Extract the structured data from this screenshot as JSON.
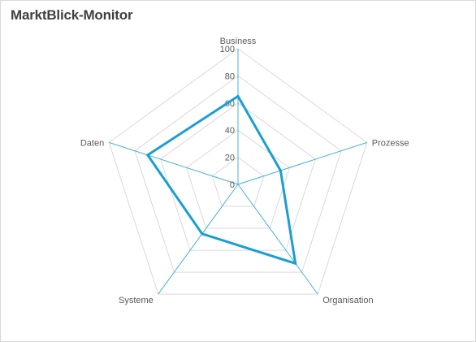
{
  "chart_data": {
    "type": "radar",
    "title": "MarktBlick-Monitor",
    "categories": [
      "Business",
      "Prozesse",
      "Organisation",
      "Systeme",
      "Daten"
    ],
    "series": [
      {
        "values": [
          65,
          33,
          72,
          45,
          70
        ]
      }
    ],
    "rlim": [
      0,
      100
    ],
    "ticks": [
      0,
      20,
      40,
      60,
      80,
      100
    ],
    "grid": true,
    "legend": "none"
  },
  "colors": {
    "series": "#1a9ed4",
    "axis": "#45b0dc",
    "grid": "#d9d9d9",
    "text": "#595959",
    "title": "#404040"
  }
}
